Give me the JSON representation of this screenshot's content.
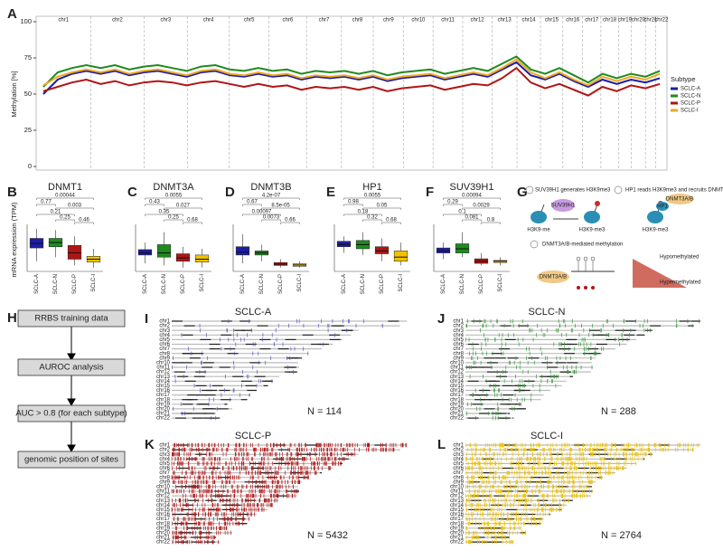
{
  "letters": [
    "A",
    "B",
    "C",
    "D",
    "E",
    "F",
    "G",
    "H",
    "I",
    "J",
    "K",
    "L"
  ],
  "methylation": {
    "type": "line",
    "y_label": "Methylation [%]",
    "ylim": [
      0,
      100
    ],
    "yticks": [
      0,
      25,
      50,
      75,
      100
    ],
    "chromosomes": [
      "chr1",
      "chr2",
      "chr3",
      "chr4",
      "chr5",
      "chr6",
      "chr7",
      "chr8",
      "chr9",
      "chr10",
      "chr11",
      "chr12",
      "chr13",
      "chr14",
      "chr15",
      "chr16",
      "chr17",
      "chr18",
      "chr19",
      "chr20",
      "chr21",
      "chr22"
    ],
    "legend_title": "Subtype",
    "series": [
      {
        "name": "SCLC-A",
        "color": "#1c1ca8",
        "values": [
          50,
          60,
          64,
          66,
          64,
          66,
          63,
          65,
          66,
          64,
          62,
          65,
          66,
          63,
          62,
          64,
          62,
          63,
          60,
          62,
          61,
          62,
          60,
          62,
          59,
          61,
          62,
          63,
          60,
          62,
          64,
          62,
          67,
          72,
          63,
          60,
          64,
          59,
          55,
          60,
          57,
          60,
          58,
          61
        ]
      },
      {
        "name": "SCLC-N",
        "color": "#1f8a1f",
        "values": [
          55,
          65,
          68,
          70,
          68,
          70,
          67,
          69,
          70,
          68,
          66,
          69,
          70,
          67,
          66,
          68,
          66,
          67,
          64,
          66,
          65,
          66,
          64,
          66,
          63,
          65,
          66,
          67,
          64,
          66,
          68,
          66,
          71,
          76,
          67,
          64,
          68,
          63,
          58,
          64,
          61,
          64,
          62,
          66
        ]
      },
      {
        "name": "SCLC-P",
        "color": "#b01515",
        "values": [
          52,
          55,
          58,
          60,
          57,
          59,
          56,
          58,
          59,
          58,
          56,
          58,
          59,
          57,
          55,
          57,
          55,
          56,
          53,
          55,
          54,
          55,
          53,
          55,
          52,
          54,
          55,
          56,
          53,
          55,
          57,
          56,
          61,
          68,
          58,
          54,
          57,
          53,
          49,
          55,
          52,
          56,
          54,
          57
        ]
      },
      {
        "name": "SCLC-I",
        "color": "#f0a820",
        "values": [
          56,
          62,
          65,
          67,
          65,
          67,
          64,
          66,
          67,
          65,
          63,
          66,
          67,
          64,
          63,
          65,
          63,
          64,
          61,
          63,
          62,
          63,
          61,
          63,
          60,
          62,
          63,
          64,
          61,
          63,
          65,
          63,
          68,
          74,
          65,
          61,
          65,
          60,
          56,
          62,
          59,
          62,
          60,
          64
        ]
      }
    ]
  },
  "expression": {
    "type": "box",
    "y_label": "mRNA expression (TPM)",
    "ylim": [
      0,
      100
    ],
    "categories": [
      "SCLC-A",
      "SCLC-N",
      "SCLC-P",
      "SCLC-I"
    ],
    "colors": [
      "#1c1ca8",
      "#1f8a1f",
      "#b01515",
      "#f2c200"
    ],
    "genes": [
      {
        "title": "DNMT1",
        "p_values": [
          "0.00044",
          "0.77",
          "0.003",
          "0.21",
          "0.25",
          "0.46"
        ],
        "boxes": [
          {
            "low": 20,
            "q1": 52,
            "median": 63,
            "q3": 75,
            "high": 98
          },
          {
            "low": 30,
            "q1": 55,
            "median": 65,
            "q3": 75,
            "high": 95
          },
          {
            "low": 10,
            "q1": 25,
            "median": 40,
            "q3": 58,
            "high": 80
          },
          {
            "low": 5,
            "q1": 18,
            "median": 25,
            "q3": 32,
            "high": 50
          }
        ]
      },
      {
        "title": "DNMT3A",
        "p_values": [
          "0.0055",
          "0.43",
          "0.027",
          "0.35",
          "0.25",
          "0.68"
        ],
        "boxes": [
          {
            "low": 15,
            "q1": 35,
            "median": 40,
            "q3": 48,
            "high": 65
          },
          {
            "low": 10,
            "q1": 30,
            "median": 40,
            "q3": 60,
            "high": 90
          },
          {
            "low": 5,
            "q1": 20,
            "median": 28,
            "q3": 38,
            "high": 55
          },
          {
            "low": 5,
            "q1": 18,
            "median": 25,
            "q3": 35,
            "high": 50
          }
        ]
      },
      {
        "title": "DNMT3B",
        "p_values": [
          "4.2e-07",
          "0.67",
          "8.5e-05",
          "0.00097",
          "0.0073",
          "0.66"
        ],
        "boxes": [
          {
            "low": 15,
            "q1": 35,
            "median": 42,
            "q3": 55,
            "high": 85
          },
          {
            "low": 20,
            "q1": 35,
            "median": 40,
            "q3": 45,
            "high": 60
          },
          {
            "low": 5,
            "q1": 10,
            "median": 13,
            "q3": 17,
            "high": 25
          },
          {
            "low": 5,
            "q1": 8,
            "median": 11,
            "q3": 14,
            "high": 20
          }
        ]
      },
      {
        "title": "HP1",
        "p_values": [
          "0.0055",
          "0.98",
          "0.05",
          "0.18",
          "0.32",
          "0.68"
        ],
        "boxes": [
          {
            "low": 40,
            "q1": 55,
            "median": 60,
            "q3": 68,
            "high": 80
          },
          {
            "low": 35,
            "q1": 50,
            "median": 60,
            "q3": 70,
            "high": 90
          },
          {
            "low": 20,
            "q1": 38,
            "median": 45,
            "q3": 55,
            "high": 75
          },
          {
            "low": 10,
            "q1": 20,
            "median": 30,
            "q3": 45,
            "high": 65
          }
        ]
      },
      {
        "title": "SUV39H1",
        "p_values": [
          "0.00094",
          "0.29",
          "0.0029",
          "0.1",
          "0.081",
          "0.8"
        ],
        "boxes": [
          {
            "low": 25,
            "q1": 40,
            "median": 45,
            "q3": 52,
            "high": 65
          },
          {
            "low": 30,
            "q1": 40,
            "median": 50,
            "q3": 62,
            "high": 90
          },
          {
            "low": 10,
            "q1": 15,
            "median": 20,
            "q3": 26,
            "high": 40
          },
          {
            "low": 10,
            "q1": 17,
            "median": 20,
            "q3": 22,
            "high": 30
          }
        ]
      }
    ]
  },
  "mechanism": {
    "step1": "SUV39H1 generates H3K9me3",
    "step2": "HP1 reads H3K9me3 and recruits DNMT3A/B",
    "step3": "DNMT3A/B-mediated methylation",
    "enzyme": "SUV39H1",
    "mark_before": "H3K9-me",
    "mark_after": "H3K9-me3",
    "reader": "HP1",
    "writer": "DNMT3A/B",
    "mark_bound": "H3K9-me3",
    "writer2": "DNMT3A/B",
    "hypo": "Hypomethylated",
    "hyper": "Hypermethylated"
  },
  "workflow": {
    "steps": [
      "RRBS training data",
      "AUROC analysis",
      "AUC > 0.8 (for each subtype)",
      "genomic position of sites"
    ]
  },
  "karyotypes": {
    "chromosomes": [
      "chr1",
      "chr2",
      "chr3",
      "chr4",
      "chr5",
      "chr6",
      "chr7",
      "chr8",
      "chr9",
      "chr10",
      "chr11",
      "chr12",
      "chr13",
      "chr14",
      "chr15",
      "chr16",
      "chr17",
      "chr18",
      "chr19",
      "chr20",
      "chr21",
      "chr22"
    ],
    "panels": [
      {
        "title": "SCLC-A",
        "n": 114,
        "n_label": "N = 114",
        "color": "#5a5ac8"
      },
      {
        "title": "SCLC-N",
        "n": 288,
        "n_label": "N = 288",
        "color": "#3a9a3a"
      },
      {
        "title": "SCLC-P",
        "n": 5432,
        "n_label": "N = 5432",
        "color": "#b01515"
      },
      {
        "title": "SCLC-I",
        "n": 2764,
        "n_label": "N = 2764",
        "color": "#f2c200"
      }
    ]
  }
}
